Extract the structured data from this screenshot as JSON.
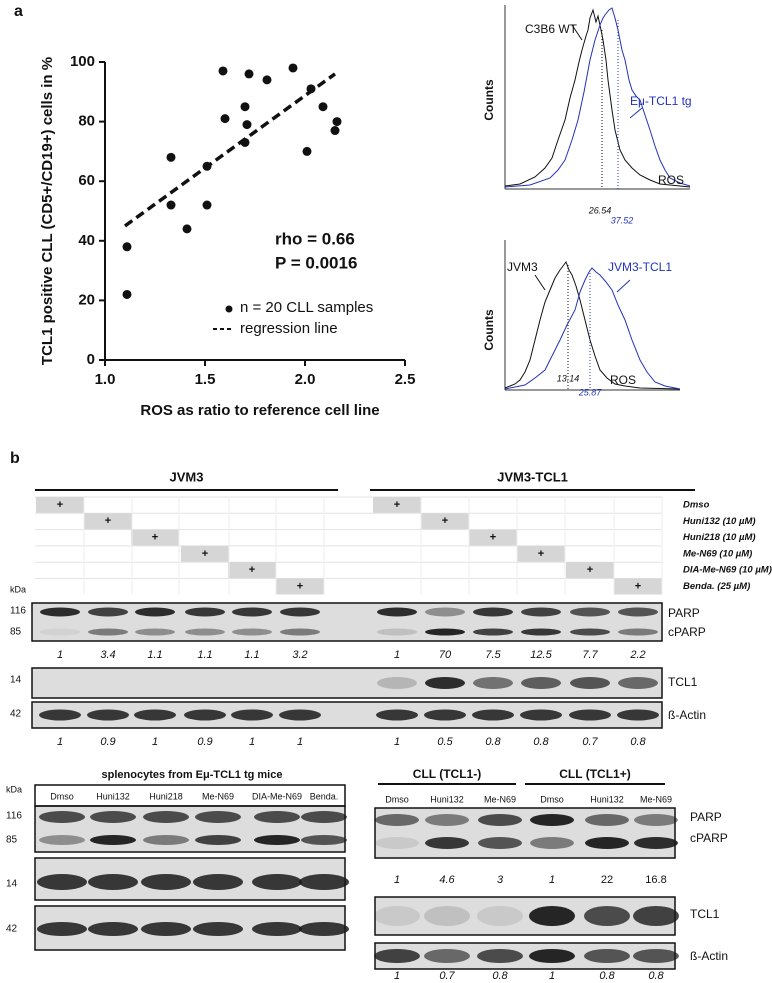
{
  "chart_data": {
    "type": "scatter",
    "panel_label": "a",
    "x": [
      1.11,
      1.11,
      1.33,
      1.33,
      1.41,
      1.51,
      1.51,
      1.59,
      1.6,
      1.7,
      1.71,
      1.72,
      1.7,
      1.81,
      1.94,
      2.01,
      2.03,
      2.09,
      2.15,
      2.16
    ],
    "values": [
      38,
      22,
      68,
      52,
      44,
      65,
      52,
      97,
      81,
      85,
      79,
      96,
      73,
      94,
      98,
      70,
      91,
      85,
      77,
      80
    ],
    "regression": {
      "x": [
        1.1,
        2.15
      ],
      "values": [
        45,
        96
      ]
    },
    "xlim": [
      1.0,
      2.5
    ],
    "xticks": [
      {
        "value": 1.0,
        "label": "1.0"
      },
      {
        "value": 1.5,
        "label": "1.5"
      },
      {
        "value": 2.0,
        "label": "2.0"
      },
      {
        "value": 2.5,
        "label": "2.5"
      }
    ],
    "ylim": [
      0,
      100
    ],
    "yticks": [
      0,
      20,
      40,
      60,
      80,
      100
    ],
    "xlabel": "ROS as ratio to reference cell line",
    "ylabel": "TCL1 positive CLL (CD5+/CD19+) cells in %",
    "annotations": [
      "rho = 0.66",
      "P = 0.0016"
    ],
    "legend": [
      "n = 20 CLL samples",
      "regression line"
    ]
  },
  "histograms": [
    {
      "label_black": "C3B6 WT",
      "label_blue": "Eμ-TCL1 tg",
      "ylabel": "Counts",
      "xlabel": "ROS",
      "mean_black": "26.54",
      "mean_blue": "37.52"
    },
    {
      "label_black": "JVM3",
      "label_blue": "JVM3-TCL1",
      "ylabel": "Counts",
      "xlabel": "ROS",
      "mean_black": "13.14",
      "mean_blue": "25.87"
    }
  ],
  "panel_b": {
    "label": "b",
    "groups": [
      "JVM3",
      "JVM3-TCL1"
    ],
    "treatments": [
      "Dmso",
      "Huni132 (10 µM)",
      "Huni218 (10 µM)",
      "Me-N69 (10 µM)",
      "DIA-Me-N69 (10 µM)",
      "Benda. (25 µM)"
    ],
    "mark": "+",
    "kda": "kDa",
    "markers": [
      "116",
      "85",
      "14",
      "42"
    ],
    "proteins": [
      "PARP",
      "cPARP",
      "TCL1",
      "ß-Actin"
    ],
    "parp_ratios": [
      1,
      3.4,
      1.1,
      1.1,
      1.1,
      3.2,
      1,
      70,
      7.5,
      12.5,
      7.7,
      2.2
    ],
    "actin_ratios": [
      1,
      0.9,
      1,
      0.9,
      1,
      1,
      1,
      0.5,
      0.8,
      0.8,
      0.7,
      0.8
    ]
  },
  "panel_c": {
    "title": "splenocytes from Eμ-TCL1 tg mice",
    "kda": "kDa",
    "lanes": [
      "Dmso",
      "Huni132",
      "Huni218",
      "Me-N69",
      "DIA-Me-N69",
      "Benda."
    ],
    "markers": [
      "116",
      "85",
      "14",
      "42"
    ]
  },
  "panel_d": {
    "groups": [
      "CLL (TCL1-)",
      "CLL (TCL1+)"
    ],
    "lanes": [
      "Dmso",
      "Huni132",
      "Me-N69",
      "Dmso",
      "Huni132",
      "Me-N69"
    ],
    "proteins": [
      "PARP",
      "cPARP",
      "TCL1",
      "ß-Actin"
    ],
    "parp_ratios": [
      1,
      4.6,
      3,
      1,
      22,
      16.8
    ],
    "actin_ratios": [
      1,
      0.7,
      0.8,
      1,
      0.8,
      0.8
    ]
  }
}
